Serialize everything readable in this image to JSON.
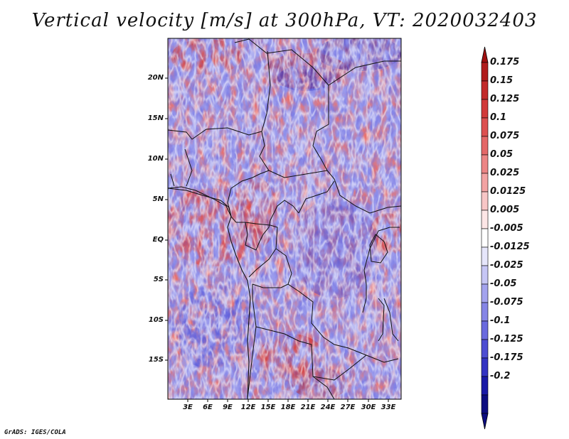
{
  "title": "Vertical velocity [m/s] at 300hPa, VT: 2020032403",
  "credit": "GrADS: IGES/COLA",
  "lat_labels": [
    "20N",
    "15N",
    "10N",
    "5N",
    "EQ",
    "5S",
    "10S",
    "15S"
  ],
  "lon_labels": [
    "3E",
    "6E",
    "9E",
    "12E",
    "15E",
    "18E",
    "21E",
    "24E",
    "27E",
    "30E",
    "33E"
  ],
  "colorbar": {
    "labels": [
      "0.175",
      "0.15",
      "0.125",
      "0.1",
      "0.075",
      "0.05",
      "0.025",
      "0.0125",
      "0.005",
      "-0.005",
      "-0.0125",
      "-0.025",
      "-0.05",
      "-0.075",
      "-0.1",
      "-0.125",
      "-0.175",
      "-0.2"
    ],
    "colors": [
      "#b01c1c",
      "#c22a2a",
      "#d13a3a",
      "#dc5050",
      "#e46868",
      "#ec8585",
      "#f3a3a3",
      "#f8c6c6",
      "#fde6e6",
      "#ffffff",
      "#e6e6fb",
      "#c6c6f5",
      "#a3a3ee",
      "#8585e6",
      "#6a6ade",
      "#4d4dd2",
      "#3333c2",
      "#1a1aa6",
      "#0d0d80"
    ],
    "min_color": "#0d0d80",
    "max_color": "#a01010"
  }
}
